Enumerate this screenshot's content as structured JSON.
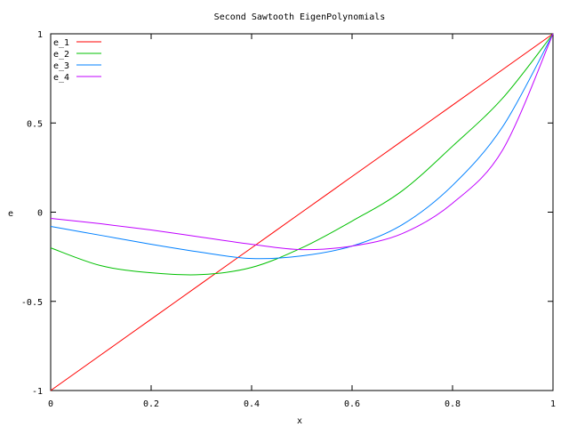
{
  "chart_data": {
    "type": "line",
    "title": "Second Sawtooth EigenPolynomials",
    "xlabel": "x",
    "ylabel": "e",
    "xlim": [
      0,
      1
    ],
    "ylim": [
      -1,
      1
    ],
    "xticks": [
      0,
      0.2,
      0.4,
      0.6,
      0.8,
      1
    ],
    "xtick_labels": [
      "0",
      "0.2",
      "0.4",
      "0.6",
      "0.8",
      "1"
    ],
    "yticks": [
      -1,
      -0.5,
      0,
      0.5,
      1
    ],
    "ytick_labels": [
      "-1",
      "-0.5",
      "0",
      "0.5",
      "1"
    ],
    "grid": false,
    "legend_position": "top-left",
    "x": [
      0,
      0.1,
      0.2,
      0.3,
      0.4,
      0.5,
      0.6,
      0.7,
      0.8,
      0.9,
      1.0
    ],
    "series": [
      {
        "name": "e_1",
        "color": "#ff0000",
        "values": [
          -1,
          -0.8,
          -0.6,
          -0.4,
          -0.2,
          0,
          0.2,
          0.4,
          0.6,
          0.8,
          1
        ]
      },
      {
        "name": "e_2",
        "color": "#00c000",
        "values": [
          -0.2,
          -0.3,
          -0.34,
          -0.35,
          -0.31,
          -0.2,
          -0.05,
          0.12,
          0.37,
          0.64,
          1
        ]
      },
      {
        "name": "e_3",
        "color": "#0080ff",
        "values": [
          -0.08,
          -0.13,
          -0.18,
          -0.225,
          -0.26,
          -0.245,
          -0.19,
          -0.07,
          0.15,
          0.48,
          1
        ]
      },
      {
        "name": "e_4",
        "color": "#c000ff",
        "values": [
          -0.035,
          -0.065,
          -0.1,
          -0.14,
          -0.18,
          -0.21,
          -0.19,
          -0.12,
          0.05,
          0.35,
          1
        ]
      }
    ]
  }
}
